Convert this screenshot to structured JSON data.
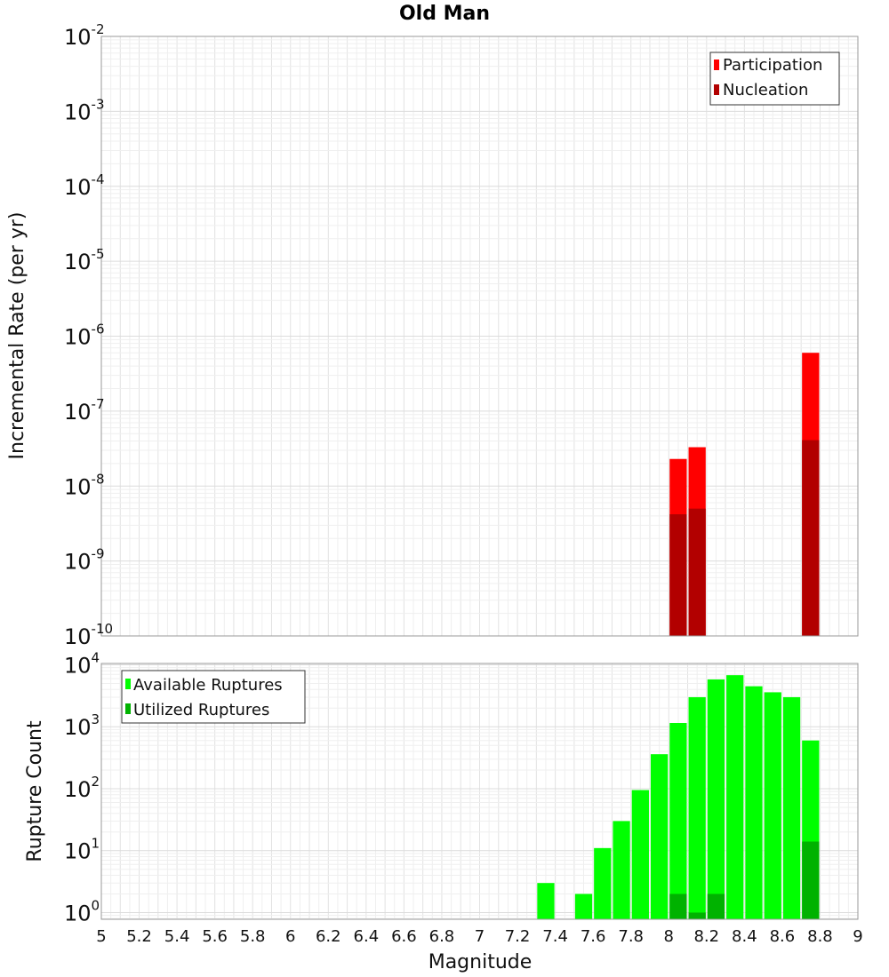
{
  "chart_data": {
    "title": "Old Man",
    "xlabel": "Magnitude",
    "x_ticks": [
      "5",
      "5.2",
      "5.4",
      "5.6",
      "5.8",
      "6",
      "6.2",
      "6.4",
      "6.6",
      "6.8",
      "7",
      "7.2",
      "7.4",
      "7.6",
      "7.8",
      "8",
      "8.2",
      "8.4",
      "8.6",
      "8.8",
      "9"
    ],
    "xlim": [
      5,
      9
    ],
    "bin_width": 0.1,
    "panels": [
      {
        "type": "bar",
        "ylabel": "Incremental Rate (per yr)",
        "yscale": "log",
        "ylim": [
          1e-10,
          0.01
        ],
        "y_ticks": [
          {
            "base": "10",
            "exp": "-2",
            "value": 0.01
          },
          {
            "base": "10",
            "exp": "-3",
            "value": 0.001
          },
          {
            "base": "10",
            "exp": "-4",
            "value": 0.0001
          },
          {
            "base": "10",
            "exp": "-5",
            "value": 1e-05
          },
          {
            "base": "10",
            "exp": "-6",
            "value": 1e-06
          },
          {
            "base": "10",
            "exp": "-7",
            "value": 1e-07
          },
          {
            "base": "10",
            "exp": "-8",
            "value": 1e-08
          },
          {
            "base": "10",
            "exp": "-9",
            "value": 1e-09
          },
          {
            "base": "10",
            "exp": "-10",
            "value": 1e-10
          }
        ],
        "legend": {
          "position": "top-right"
        },
        "series": [
          {
            "name": "Participation",
            "color": "#ff0000",
            "points": [
              {
                "x": 8.05,
                "y": 2.3e-08
              },
              {
                "x": 8.15,
                "y": 3.3e-08
              },
              {
                "x": 8.75,
                "y": 6e-07
              }
            ]
          },
          {
            "name": "Nucleation",
            "color": "#b20000",
            "points": [
              {
                "x": 8.05,
                "y": 4.2e-09
              },
              {
                "x": 8.15,
                "y": 5e-09
              },
              {
                "x": 8.75,
                "y": 4.1e-08
              }
            ]
          }
        ]
      },
      {
        "type": "bar",
        "ylabel": "Rupture Count",
        "yscale": "log",
        "ylim": [
          0.78,
          10500
        ],
        "y_ticks": [
          {
            "base": "10",
            "exp": "4",
            "value": 10000
          },
          {
            "base": "10",
            "exp": "3",
            "value": 1000
          },
          {
            "base": "10",
            "exp": "2",
            "value": 100
          },
          {
            "base": "10",
            "exp": "1",
            "value": 10
          },
          {
            "base": "10",
            "exp": "0",
            "value": 1
          }
        ],
        "legend": {
          "position": "top-left"
        },
        "series": [
          {
            "name": "Available Ruptures",
            "color": "#00ff00",
            "points": [
              {
                "x": 7.35,
                "y": 3
              },
              {
                "x": 7.55,
                "y": 2
              },
              {
                "x": 7.65,
                "y": 11
              },
              {
                "x": 7.75,
                "y": 30
              },
              {
                "x": 7.85,
                "y": 95
              },
              {
                "x": 7.95,
                "y": 360
              },
              {
                "x": 8.05,
                "y": 1150
              },
              {
                "x": 8.15,
                "y": 3000
              },
              {
                "x": 8.25,
                "y": 5800
              },
              {
                "x": 8.35,
                "y": 6800
              },
              {
                "x": 8.45,
                "y": 4500
              },
              {
                "x": 8.55,
                "y": 3600
              },
              {
                "x": 8.65,
                "y": 3000
              },
              {
                "x": 8.75,
                "y": 600
              }
            ]
          },
          {
            "name": "Utilized Ruptures",
            "color": "#00b200",
            "points": [
              {
                "x": 8.05,
                "y": 2
              },
              {
                "x": 8.15,
                "y": 1
              },
              {
                "x": 8.25,
                "y": 2
              },
              {
                "x": 8.75,
                "y": 14
              }
            ]
          }
        ]
      }
    ]
  }
}
